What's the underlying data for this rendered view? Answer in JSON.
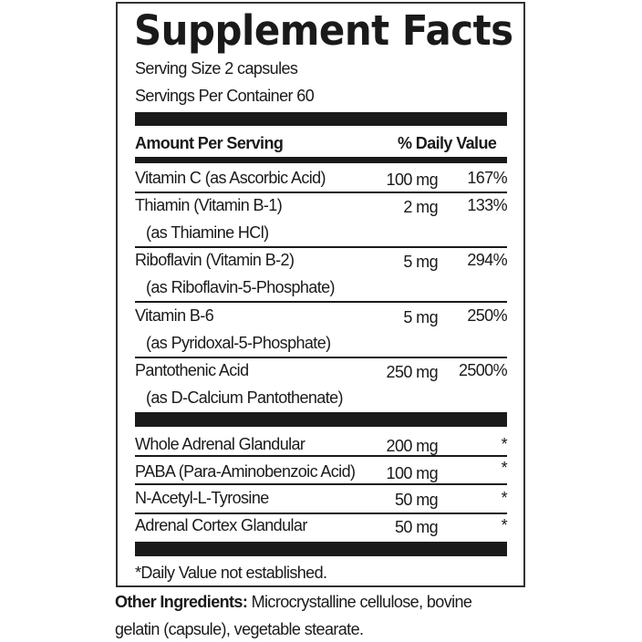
{
  "title": "Supplement Facts",
  "serving_size": "Serving Size 2 capsules",
  "servings_per_container": "Servings Per Container 60",
  "header": {
    "amount": "Amount Per Serving",
    "daily_value": "% Daily Value"
  },
  "nutrients": [
    {
      "name": "Vitamin C (as Ascorbic Acid)",
      "sub": "",
      "amount": "100 mg",
      "dv": "167%"
    },
    {
      "name": "Thiamin (Vitamin B-1)",
      "sub": "(as Thiamine HCl)",
      "amount": "2 mg",
      "dv": "133%"
    },
    {
      "name": "Riboflavin (Vitamin B-2)",
      "sub": "(as Riboflavin-5-Phosphate)",
      "amount": "5 mg",
      "dv": "294%"
    },
    {
      "name": "Vitamin B-6",
      "sub": "(as Pyridoxal-5-Phosphate)",
      "amount": "5 mg",
      "dv": "250%"
    },
    {
      "name": "Pantothenic Acid",
      "sub": "(as D-Calcium Pantothenate)",
      "amount": "250 mg",
      "dv": "2500%"
    }
  ],
  "other_nutrients": [
    {
      "name": "Whole Adrenal Glandular",
      "amount": "200 mg",
      "dv": "*"
    },
    {
      "name": "PABA (Para-Aminobenzoic Acid)",
      "amount": "100 mg",
      "dv": "*"
    },
    {
      "name": "N-Acetyl-L-Tyrosine",
      "amount": "50 mg",
      "dv": "*"
    },
    {
      "name": "Adrenal Cortex Glandular",
      "amount": "50 mg",
      "dv": "*"
    }
  ],
  "footnote": "*Daily Value not established.",
  "other_ingredients": {
    "label": "Other Ingredients:",
    "line1": " Microcrystalline cellulose, bovine",
    "line2": "gelatin (capsule), vegetable stearate."
  }
}
